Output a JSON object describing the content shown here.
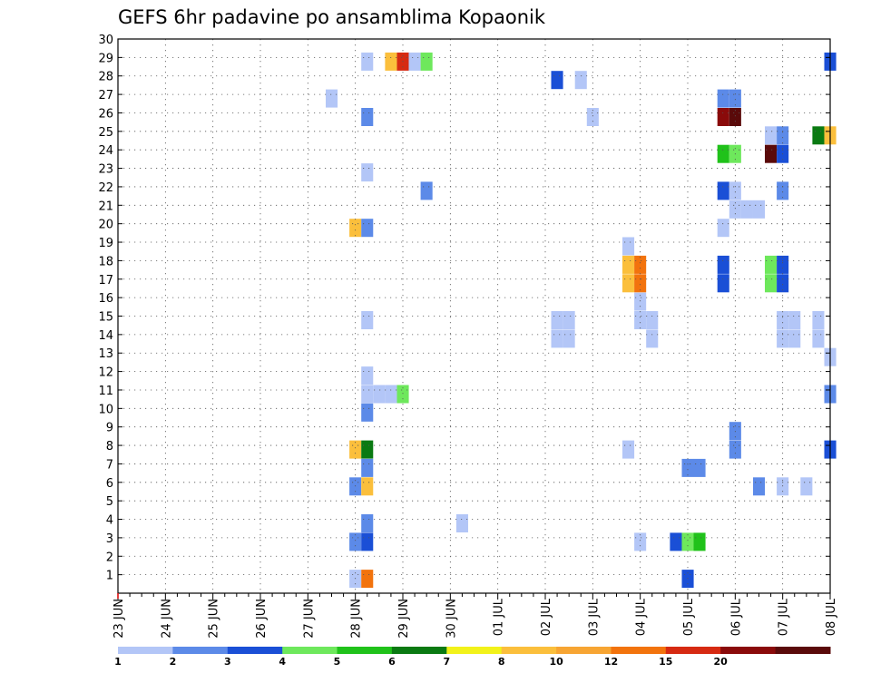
{
  "chart_data": {
    "type": "heatmap",
    "title": "GEFS 6hr padavine po ansamblima Kopaonik",
    "y_ticks": [
      "1",
      "2",
      "3",
      "4",
      "5",
      "6",
      "7",
      "8",
      "9",
      "10",
      "11",
      "12",
      "13",
      "14",
      "15",
      "16",
      "17",
      "18",
      "19",
      "20",
      "21",
      "22",
      "23",
      "24",
      "25",
      "26",
      "27",
      "28",
      "29",
      "30"
    ],
    "ylim": [
      0,
      30
    ],
    "x_ticks": [
      "23 JUN",
      "24 JUN",
      "25 JUN",
      "26 JUN",
      "27 JUN",
      "28 JUN",
      "29 JUN",
      "30 JUN",
      "01 JUL",
      "02 JUL",
      "03 JUL",
      "04 JUL",
      "05 JUL",
      "06 JUL",
      "07 JUL",
      "08 JUL"
    ],
    "x_unit": "6-hour steps from 23 JUN",
    "grid": true,
    "colorbar": {
      "labels": [
        "1",
        "2",
        "3",
        "4",
        "5",
        "6",
        "7",
        "8",
        "10",
        "12",
        "15",
        "20"
      ],
      "colors": [
        "#b3c6f7",
        "#5c8ae8",
        "#1a4fd6",
        "#6ee85c",
        "#20c21a",
        "#0a7a12",
        "#f2f21a",
        "#fbbf3c",
        "#f7a533",
        "#f2730d",
        "#d62a12",
        "#8a0a0a",
        "#5a0a0a"
      ]
    },
    "cells": [
      {
        "member": 29,
        "step": 21,
        "class": 0
      },
      {
        "member": 29,
        "step": 23,
        "class": 7
      },
      {
        "member": 29,
        "step": 24,
        "class": 10
      },
      {
        "member": 29,
        "step": 25,
        "class": 0
      },
      {
        "member": 29,
        "step": 26,
        "class": 3
      },
      {
        "member": 29,
        "step": 60,
        "class": 2
      },
      {
        "member": 28,
        "step": 37,
        "class": 2
      },
      {
        "member": 28,
        "step": 39,
        "class": 0
      },
      {
        "member": 27,
        "step": 18,
        "class": 0
      },
      {
        "member": 27,
        "step": 51,
        "class": 1
      },
      {
        "member": 27,
        "step": 52,
        "class": 1
      },
      {
        "member": 26,
        "step": 21,
        "class": 1
      },
      {
        "member": 26,
        "step": 40,
        "class": 0
      },
      {
        "member": 26,
        "step": 51,
        "class": 11
      },
      {
        "member": 26,
        "step": 52,
        "class": 12
      },
      {
        "member": 25,
        "step": 55,
        "class": 0
      },
      {
        "member": 25,
        "step": 56,
        "class": 1
      },
      {
        "member": 25,
        "step": 59,
        "class": 5
      },
      {
        "member": 25,
        "step": 60,
        "class": 7
      },
      {
        "member": 24,
        "step": 51,
        "class": 4
      },
      {
        "member": 24,
        "step": 52,
        "class": 3
      },
      {
        "member": 24,
        "step": 55,
        "class": 12
      },
      {
        "member": 24,
        "step": 56,
        "class": 2
      },
      {
        "member": 23,
        "step": 21,
        "class": 0
      },
      {
        "member": 22,
        "step": 26,
        "class": 1
      },
      {
        "member": 22,
        "step": 51,
        "class": 2
      },
      {
        "member": 22,
        "step": 52,
        "class": 0
      },
      {
        "member": 22,
        "step": 56,
        "class": 1
      },
      {
        "member": 21,
        "step": 52,
        "class": 0
      },
      {
        "member": 21,
        "step": 53,
        "class": 0
      },
      {
        "member": 21,
        "step": 54,
        "class": 0
      },
      {
        "member": 20,
        "step": 20,
        "class": 7
      },
      {
        "member": 20,
        "step": 21,
        "class": 1
      },
      {
        "member": 20,
        "step": 51,
        "class": 0
      },
      {
        "member": 19,
        "step": 43,
        "class": 0
      },
      {
        "member": 18,
        "step": 43,
        "class": 7
      },
      {
        "member": 18,
        "step": 44,
        "class": 9
      },
      {
        "member": 18,
        "step": 51,
        "class": 2
      },
      {
        "member": 18,
        "step": 55,
        "class": 3
      },
      {
        "member": 18,
        "step": 56,
        "class": 2
      },
      {
        "member": 17,
        "step": 43,
        "class": 7
      },
      {
        "member": 17,
        "step": 44,
        "class": 9
      },
      {
        "member": 17,
        "step": 51,
        "class": 2
      },
      {
        "member": 17,
        "step": 55,
        "class": 3
      },
      {
        "member": 17,
        "step": 56,
        "class": 2
      },
      {
        "member": 16,
        "step": 44,
        "class": 0
      },
      {
        "member": 15,
        "step": 21,
        "class": 0
      },
      {
        "member": 15,
        "step": 37,
        "class": 0
      },
      {
        "member": 15,
        "step": 38,
        "class": 0
      },
      {
        "member": 15,
        "step": 44,
        "class": 0
      },
      {
        "member": 15,
        "step": 45,
        "class": 0
      },
      {
        "member": 15,
        "step": 56,
        "class": 0
      },
      {
        "member": 15,
        "step": 57,
        "class": 0
      },
      {
        "member": 15,
        "step": 59,
        "class": 0
      },
      {
        "member": 14,
        "step": 37,
        "class": 0
      },
      {
        "member": 14,
        "step": 38,
        "class": 0
      },
      {
        "member": 14,
        "step": 45,
        "class": 0
      },
      {
        "member": 14,
        "step": 56,
        "class": 0
      },
      {
        "member": 14,
        "step": 57,
        "class": 0
      },
      {
        "member": 14,
        "step": 59,
        "class": 0
      },
      {
        "member": 13,
        "step": 60,
        "class": 0
      },
      {
        "member": 12,
        "step": 21,
        "class": 0
      },
      {
        "member": 11,
        "step": 21,
        "class": 0
      },
      {
        "member": 11,
        "step": 22,
        "class": 0
      },
      {
        "member": 11,
        "step": 23,
        "class": 0
      },
      {
        "member": 11,
        "step": 24,
        "class": 3
      },
      {
        "member": 11,
        "step": 60,
        "class": 1
      },
      {
        "member": 10,
        "step": 21,
        "class": 1
      },
      {
        "member": 9,
        "step": 52,
        "class": 1
      },
      {
        "member": 8,
        "step": 20,
        "class": 7
      },
      {
        "member": 8,
        "step": 21,
        "class": 5
      },
      {
        "member": 8,
        "step": 43,
        "class": 0
      },
      {
        "member": 8,
        "step": 52,
        "class": 1
      },
      {
        "member": 8,
        "step": 60,
        "class": 2
      },
      {
        "member": 7,
        "step": 21,
        "class": 1
      },
      {
        "member": 7,
        "step": 48,
        "class": 1
      },
      {
        "member": 7,
        "step": 49,
        "class": 1
      },
      {
        "member": 6,
        "step": 20,
        "class": 1
      },
      {
        "member": 6,
        "step": 21,
        "class": 7
      },
      {
        "member": 6,
        "step": 54,
        "class": 1
      },
      {
        "member": 6,
        "step": 56,
        "class": 0
      },
      {
        "member": 6,
        "step": 58,
        "class": 0
      },
      {
        "member": 4,
        "step": 21,
        "class": 1
      },
      {
        "member": 4,
        "step": 29,
        "class": 0
      },
      {
        "member": 3,
        "step": 20,
        "class": 1
      },
      {
        "member": 3,
        "step": 21,
        "class": 2
      },
      {
        "member": 3,
        "step": 44,
        "class": 0
      },
      {
        "member": 3,
        "step": 47,
        "class": 2
      },
      {
        "member": 3,
        "step": 48,
        "class": 3
      },
      {
        "member": 3,
        "step": 49,
        "class": 4
      },
      {
        "member": 1,
        "step": 20,
        "class": 0
      },
      {
        "member": 1,
        "step": 21,
        "class": 9
      },
      {
        "member": 1,
        "step": 48,
        "class": 2
      }
    ]
  }
}
